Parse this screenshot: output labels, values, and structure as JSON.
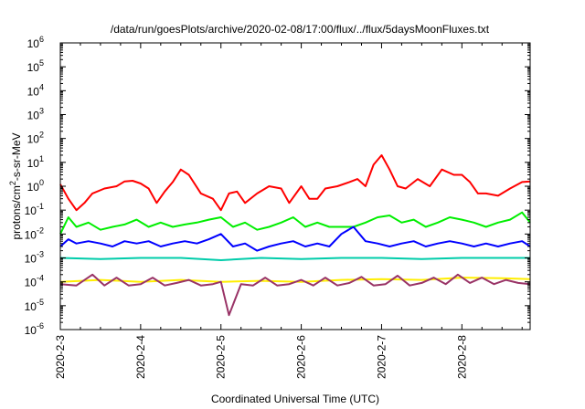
{
  "chart_data": {
    "type": "line",
    "title": "/data/run/goesPlots/archive/2020-02-08/17:00/flux/../flux/5daysMoonFluxes.txt",
    "xlabel": "Coordinated Universal Time (UTC)",
    "ylabel": "protons/cm²-s-sr-MeV",
    "ylabel_parts": {
      "pre": "protons/cm",
      "sup": "2",
      "post": "-s-sr-MeV"
    },
    "yscale": "log",
    "ylim_exponent": [
      -6,
      6
    ],
    "y_ticks": [
      {
        "base": "10",
        "exp": "-6"
      },
      {
        "base": "10",
        "exp": "-5"
      },
      {
        "base": "10",
        "exp": "-4"
      },
      {
        "base": "10",
        "exp": "-3"
      },
      {
        "base": "10",
        "exp": "-2"
      },
      {
        "base": "10",
        "exp": "-1"
      },
      {
        "base": "10",
        "exp": "0"
      },
      {
        "base": "10",
        "exp": "1"
      },
      {
        "base": "10",
        "exp": "2"
      },
      {
        "base": "10",
        "exp": "3"
      },
      {
        "base": "10",
        "exp": "4"
      },
      {
        "base": "10",
        "exp": "5"
      },
      {
        "base": "10",
        "exp": "6"
      }
    ],
    "x_ticks": [
      "2020-2-3",
      "2020-2-4",
      "2020-2-5",
      "2020-2-6",
      "2020-2-7",
      "2020-2-8"
    ],
    "xlim_days": [
      0,
      5.85
    ],
    "grid": false,
    "legend": "none",
    "series": [
      {
        "color": "#ff0000",
        "x": [
          0,
          0.1,
          0.2,
          0.3,
          0.4,
          0.55,
          0.7,
          0.8,
          0.9,
          1.0,
          1.1,
          1.2,
          1.3,
          1.4,
          1.5,
          1.6,
          1.75,
          1.9,
          2.0,
          2.1,
          2.2,
          2.3,
          2.45,
          2.6,
          2.75,
          2.85,
          3.0,
          3.1,
          3.2,
          3.3,
          3.45,
          3.6,
          3.7,
          3.8,
          3.9,
          4.0,
          4.1,
          4.2,
          4.3,
          4.45,
          4.6,
          4.75,
          4.9,
          5.0,
          5.1,
          5.2,
          5.3,
          5.45,
          5.6,
          5.75,
          5.85
        ],
        "y": [
          1.2,
          0.3,
          0.1,
          0.2,
          0.5,
          0.8,
          1.0,
          1.6,
          1.7,
          1.3,
          0.8,
          0.2,
          0.6,
          1.5,
          5,
          3.0,
          0.5,
          0.3,
          0.1,
          0.5,
          0.6,
          0.2,
          0.5,
          1.0,
          0.8,
          0.2,
          1.0,
          0.3,
          0.3,
          0.8,
          1.0,
          1.5,
          2.0,
          1.0,
          8,
          20,
          5,
          1.0,
          0.8,
          2.0,
          1.0,
          5,
          3,
          3.0,
          1.5,
          0.5,
          0.5,
          0.4,
          0.8,
          1.5,
          1.6
        ]
      },
      {
        "color": "#00ee00",
        "x": [
          0,
          0.1,
          0.2,
          0.35,
          0.5,
          0.65,
          0.8,
          0.95,
          1.1,
          1.25,
          1.4,
          1.55,
          1.7,
          1.85,
          2.0,
          2.15,
          2.3,
          2.45,
          2.6,
          2.75,
          2.9,
          3.05,
          3.2,
          3.35,
          3.5,
          3.65,
          3.8,
          3.95,
          4.1,
          4.25,
          4.4,
          4.55,
          4.7,
          4.85,
          5.0,
          5.15,
          5.3,
          5.45,
          5.6,
          5.75,
          5.85
        ],
        "y": [
          0.01,
          0.05,
          0.02,
          0.03,
          0.015,
          0.02,
          0.025,
          0.04,
          0.02,
          0.03,
          0.02,
          0.025,
          0.03,
          0.04,
          0.05,
          0.02,
          0.03,
          0.015,
          0.02,
          0.03,
          0.05,
          0.02,
          0.03,
          0.02,
          0.02,
          0.02,
          0.03,
          0.05,
          0.06,
          0.03,
          0.04,
          0.02,
          0.03,
          0.05,
          0.04,
          0.03,
          0.02,
          0.03,
          0.04,
          0.08,
          0.03
        ]
      },
      {
        "color": "#0000ff",
        "x": [
          0,
          0.1,
          0.2,
          0.35,
          0.5,
          0.65,
          0.8,
          0.95,
          1.1,
          1.25,
          1.4,
          1.55,
          1.7,
          1.85,
          2.0,
          2.15,
          2.3,
          2.45,
          2.6,
          2.75,
          2.9,
          3.05,
          3.2,
          3.35,
          3.5,
          3.65,
          3.8,
          3.95,
          4.1,
          4.25,
          4.4,
          4.55,
          4.7,
          4.85,
          5.0,
          5.15,
          5.3,
          5.45,
          5.6,
          5.75,
          5.85
        ],
        "y": [
          0.003,
          0.006,
          0.004,
          0.005,
          0.004,
          0.003,
          0.005,
          0.004,
          0.005,
          0.003,
          0.004,
          0.005,
          0.004,
          0.006,
          0.01,
          0.003,
          0.004,
          0.002,
          0.003,
          0.004,
          0.005,
          0.003,
          0.004,
          0.003,
          0.01,
          0.02,
          0.005,
          0.004,
          0.003,
          0.004,
          0.005,
          0.003,
          0.004,
          0.005,
          0.004,
          0.003,
          0.004,
          0.003,
          0.004,
          0.005,
          0.003
        ]
      },
      {
        "color": "#00ccaa",
        "x": [
          0,
          0.5,
          1.0,
          1.5,
          2.0,
          2.5,
          3.0,
          3.5,
          4.0,
          4.5,
          5.0,
          5.5,
          5.85
        ],
        "y": [
          0.001,
          0.0009,
          0.001,
          0.001,
          0.0008,
          0.001,
          0.0009,
          0.001,
          0.001,
          0.0009,
          0.001,
          0.001,
          0.001
        ]
      },
      {
        "color": "#ffee00",
        "x": [
          0,
          0.5,
          1.0,
          1.5,
          2.0,
          2.5,
          3.0,
          3.5,
          4.0,
          4.5,
          5.0,
          5.5,
          5.85
        ],
        "y": [
          0.0001,
          0.00012,
          0.0001,
          0.00012,
          0.0001,
          0.00011,
          0.0001,
          0.00012,
          0.00013,
          0.00012,
          0.00015,
          0.00014,
          0.00013
        ]
      },
      {
        "color": "#993366",
        "x": [
          0,
          0.2,
          0.4,
          0.55,
          0.7,
          0.85,
          1.0,
          1.15,
          1.3,
          1.45,
          1.6,
          1.75,
          1.9,
          2.0,
          2.1,
          2.25,
          2.4,
          2.55,
          2.7,
          2.85,
          3.0,
          3.15,
          3.3,
          3.45,
          3.6,
          3.75,
          3.9,
          4.05,
          4.2,
          4.35,
          4.5,
          4.65,
          4.8,
          4.95,
          5.1,
          5.25,
          5.4,
          5.55,
          5.7,
          5.85
        ],
        "y": [
          8e-05,
          7e-05,
          0.0002,
          7e-05,
          0.00015,
          7e-05,
          8e-05,
          0.00015,
          7e-05,
          9e-05,
          0.00012,
          7e-05,
          8e-05,
          0.0001,
          4e-06,
          8e-05,
          7e-05,
          0.00015,
          7e-05,
          8e-05,
          0.00012,
          7e-05,
          0.00015,
          7e-05,
          9e-05,
          0.00016,
          7e-05,
          8e-05,
          0.00018,
          7e-05,
          9e-05,
          0.00015,
          8e-05,
          0.0002,
          9e-05,
          0.00015,
          8e-05,
          0.00012,
          9e-05,
          8e-05
        ]
      }
    ]
  }
}
